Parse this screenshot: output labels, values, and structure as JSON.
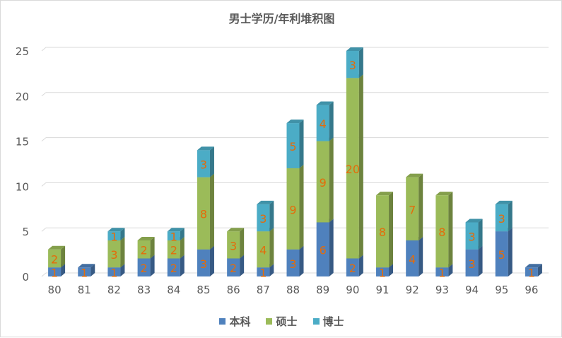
{
  "chart_data": {
    "type": "bar",
    "stacked": true,
    "three_d": true,
    "title": "男士学历/年利堆积图",
    "categories": [
      "80",
      "81",
      "82",
      "83",
      "84",
      "85",
      "86",
      "87",
      "88",
      "89",
      "90",
      "91",
      "92",
      "93",
      "94",
      "95",
      "96"
    ],
    "series": [
      {
        "name": "本科",
        "color": "#4F81BD",
        "values": [
          1,
          1,
          1,
          2,
          2,
          3,
          2,
          1,
          3,
          6,
          2,
          1,
          4,
          1,
          3,
          5,
          1
        ]
      },
      {
        "name": "硕士",
        "color": "#9BBB59",
        "values": [
          2,
          0,
          3,
          2,
          2,
          8,
          3,
          4,
          9,
          9,
          20,
          8,
          7,
          8,
          0,
          0,
          0
        ]
      },
      {
        "name": "博士",
        "color": "#4BACC6",
        "values": [
          0,
          0,
          1,
          0,
          1,
          3,
          0,
          3,
          5,
          4,
          3,
          0,
          0,
          0,
          3,
          3,
          0
        ]
      }
    ],
    "ylim": [
      0,
      25
    ],
    "yticks": [
      0,
      5,
      10,
      15,
      20,
      25
    ],
    "grid": true,
    "legend": "bottom",
    "label_color": "#E46C0A"
  }
}
